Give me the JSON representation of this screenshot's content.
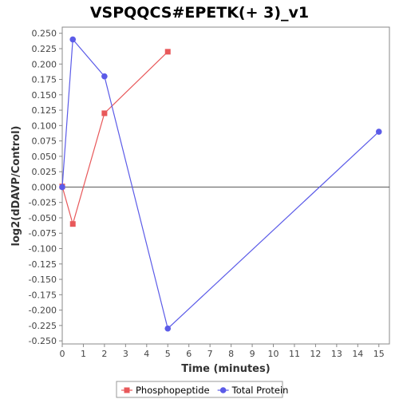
{
  "chart_data": {
    "type": "line",
    "title": "VSPQQCS#EPETK(+ 3)_v1",
    "xlabel": "Time (minutes)",
    "ylabel": "log2(dDAVP/Control)",
    "xlim": [
      0,
      15.5
    ],
    "ylim": [
      -0.255,
      0.26
    ],
    "x_ticks": [
      0,
      1,
      2,
      3,
      4,
      5,
      6,
      7,
      8,
      9,
      10,
      11,
      12,
      13,
      14,
      15
    ],
    "y_ticks": [
      -0.25,
      -0.225,
      -0.2,
      -0.175,
      -0.15,
      -0.125,
      -0.1,
      -0.075,
      -0.05,
      -0.025,
      0.0,
      0.025,
      0.05,
      0.075,
      0.1,
      0.125,
      0.15,
      0.175,
      0.2,
      0.225,
      0.25
    ],
    "zero_line": true,
    "grid": false,
    "legend_position": "bottom",
    "series": [
      {
        "name": "Phosphopeptide",
        "color": "#e8585a",
        "marker": "square",
        "x": [
          0,
          0.5,
          2,
          5
        ],
        "y": [
          0.001,
          -0.06,
          0.12,
          0.22
        ]
      },
      {
        "name": "Total Protein",
        "color": "#5b5be8",
        "marker": "circle",
        "x": [
          0,
          0.5,
          2,
          5,
          15
        ],
        "y": [
          0.0,
          0.24,
          0.18,
          -0.23,
          0.09
        ]
      }
    ]
  }
}
